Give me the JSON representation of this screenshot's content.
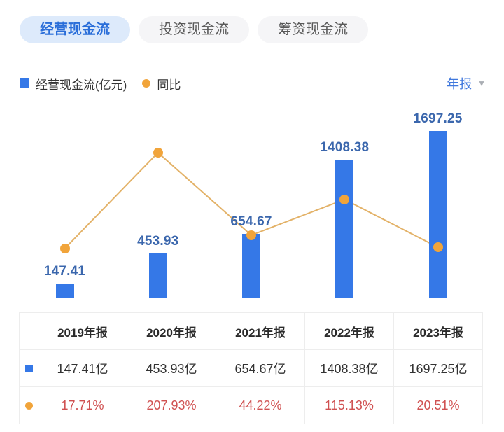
{
  "tabs": [
    {
      "label": "经营现金流",
      "active": true
    },
    {
      "label": "投资现金流",
      "active": false
    },
    {
      "label": "筹资现金流",
      "active": false
    }
  ],
  "legend": {
    "bar_label": "经营现金流(亿元)",
    "line_label": "同比"
  },
  "period_selector": {
    "label": "年报"
  },
  "chart_data": {
    "type": "bar",
    "categories": [
      "2019年报",
      "2020年报",
      "2021年报",
      "2022年报",
      "2023年报"
    ],
    "series": [
      {
        "name": "经营现金流(亿元)",
        "type": "bar",
        "values": [
          147.41,
          453.93,
          654.67,
          1408.38,
          1697.25
        ],
        "unit": "亿",
        "color": "#3578e7",
        "value_labels": [
          "147.41",
          "453.93",
          "654.67",
          "1408.38",
          "1697.25"
        ]
      },
      {
        "name": "同比",
        "type": "line",
        "values": [
          17.71,
          207.93,
          44.22,
          115.13,
          20.51
        ],
        "unit": "%",
        "color": "#f1a43a"
      }
    ],
    "title": "",
    "xlabel": "",
    "ylabel": "",
    "grid": false,
    "legend_position": "top-left",
    "value_labels_position": "above-bars",
    "axes_hidden": true
  },
  "table": {
    "header": [
      "",
      "2019年报",
      "2020年报",
      "2021年报",
      "2022年报",
      "2023年报"
    ],
    "rows": [
      {
        "icon": "bar-series-swatch",
        "cells": [
          "147.41亿",
          "453.93亿",
          "654.67亿",
          "1408.38亿",
          "1697.25亿"
        ],
        "text_color": "#333333"
      },
      {
        "icon": "line-series-swatch",
        "cells": [
          "17.71%",
          "207.93%",
          "44.22%",
          "115.13%",
          "20.51%"
        ],
        "text_color": "#d05151"
      }
    ]
  },
  "colors": {
    "bar_blue": "#3578e7",
    "bar_label_blue": "#3b67ad",
    "line_orange": "#e3b268",
    "dot_orange": "#f1a43a",
    "active_tab_text": "#2a6ed9",
    "active_tab_bg": "#ddeafb",
    "inactive_tab_bg": "#f5f5f7",
    "percent_red": "#d05151",
    "table_border": "#ededed"
  }
}
